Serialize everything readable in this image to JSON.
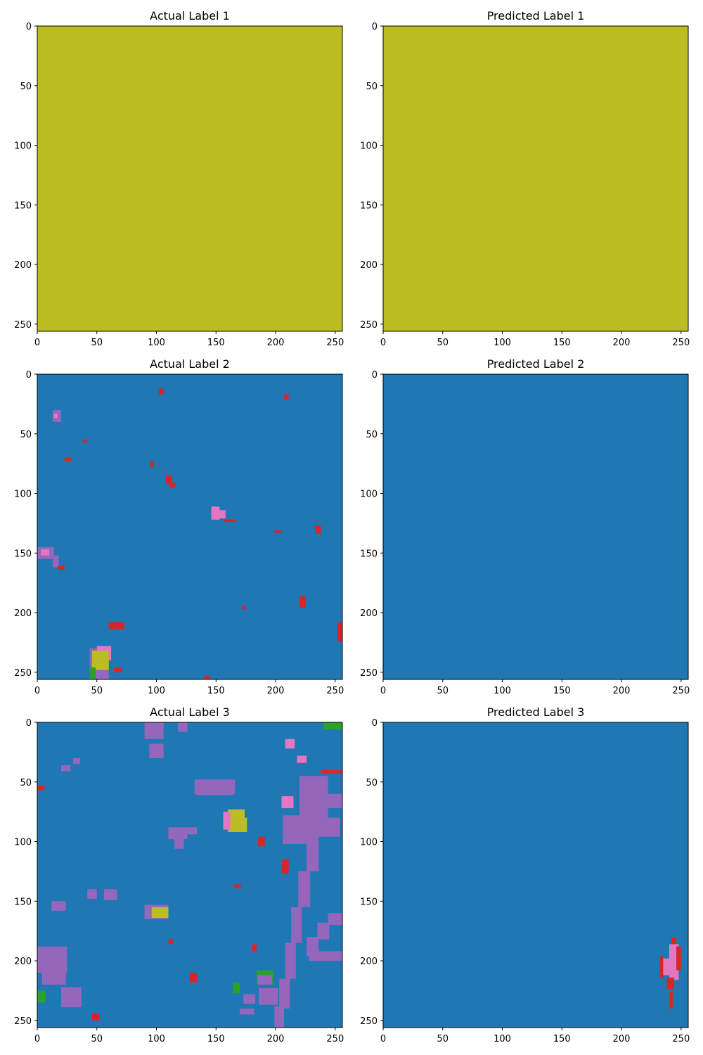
{
  "colors": {
    "background_blue": "#1f77b4",
    "olive": "#bcbd22",
    "purple": "#9467bd",
    "pink": "#e377c2",
    "red": "#d62728",
    "green": "#2ca02c",
    "frame": "#000000"
  },
  "chart_data": [
    {
      "type": "heatmap",
      "title": "Actual Label 1",
      "xlim": [
        0,
        256
      ],
      "ylim": [
        256,
        0
      ],
      "xticks": [
        0,
        50,
        100,
        150,
        200,
        250
      ],
      "yticks": [
        0,
        50,
        100,
        150,
        200,
        250
      ],
      "fill": "olive",
      "patches": []
    },
    {
      "type": "heatmap",
      "title": "Predicted Label 1",
      "xlim": [
        0,
        256
      ],
      "ylim": [
        256,
        0
      ],
      "xticks": [
        0,
        50,
        100,
        150,
        200,
        250
      ],
      "yticks": [
        0,
        50,
        100,
        150,
        200,
        250
      ],
      "fill": "olive",
      "patches": []
    },
    {
      "type": "heatmap",
      "title": "Actual Label 2",
      "xlim": [
        0,
        256
      ],
      "ylim": [
        256,
        0
      ],
      "xticks": [
        0,
        50,
        100,
        150,
        200,
        250
      ],
      "yticks": [
        0,
        50,
        100,
        150,
        200,
        250
      ],
      "fill": "background_blue",
      "patches": [
        {
          "x": 13,
          "y": 30,
          "w": 7,
          "h": 10,
          "c": "purple"
        },
        {
          "x": 14,
          "y": 33,
          "w": 3,
          "h": 4,
          "c": "pink"
        },
        {
          "x": 102,
          "y": 12,
          "w": 4,
          "h": 5,
          "c": "red"
        },
        {
          "x": 207,
          "y": 17,
          "w": 4,
          "h": 4,
          "c": "red"
        },
        {
          "x": 0,
          "y": 145,
          "w": 14,
          "h": 10,
          "c": "purple"
        },
        {
          "x": 3,
          "y": 147,
          "w": 7,
          "h": 5,
          "c": "pink"
        },
        {
          "x": 13,
          "y": 152,
          "w": 5,
          "h": 10,
          "c": "purple"
        },
        {
          "x": 17,
          "y": 161,
          "w": 6,
          "h": 3,
          "c": "red"
        },
        {
          "x": 146,
          "y": 111,
          "w": 7,
          "h": 11,
          "c": "pink"
        },
        {
          "x": 151,
          "y": 114,
          "w": 7,
          "h": 7,
          "c": "pink"
        },
        {
          "x": 157,
          "y": 122,
          "w": 9,
          "h": 2,
          "c": "red"
        },
        {
          "x": 233,
          "y": 127,
          "w": 5,
          "h": 7,
          "c": "red"
        },
        {
          "x": 108,
          "y": 85,
          "w": 5,
          "h": 7,
          "c": "red"
        },
        {
          "x": 111,
          "y": 91,
          "w": 5,
          "h": 4,
          "c": "red"
        },
        {
          "x": 44,
          "y": 230,
          "w": 16,
          "h": 26,
          "c": "purple"
        },
        {
          "x": 50,
          "y": 228,
          "w": 12,
          "h": 12,
          "c": "pink"
        },
        {
          "x": 46,
          "y": 232,
          "w": 14,
          "h": 16,
          "c": "olive"
        },
        {
          "x": 44,
          "y": 246,
          "w": 5,
          "h": 10,
          "c": "green"
        },
        {
          "x": 60,
          "y": 208,
          "w": 13,
          "h": 6,
          "c": "red"
        },
        {
          "x": 64,
          "y": 246,
          "w": 7,
          "h": 4,
          "c": "red"
        },
        {
          "x": 220,
          "y": 186,
          "w": 5,
          "h": 10,
          "c": "red"
        },
        {
          "x": 252,
          "y": 208,
          "w": 4,
          "h": 16,
          "c": "red"
        },
        {
          "x": 38,
          "y": 55,
          "w": 4,
          "h": 2,
          "c": "red"
        },
        {
          "x": 23,
          "y": 70,
          "w": 6,
          "h": 3,
          "c": "red"
        },
        {
          "x": 95,
          "y": 73,
          "w": 3,
          "h": 5,
          "c": "red"
        },
        {
          "x": 199,
          "y": 131,
          "w": 6,
          "h": 2,
          "c": "red"
        },
        {
          "x": 172,
          "y": 194,
          "w": 3,
          "h": 3,
          "c": "red"
        },
        {
          "x": 140,
          "y": 253,
          "w": 5,
          "h": 3,
          "c": "red"
        }
      ]
    },
    {
      "type": "heatmap",
      "title": "Predicted Label 2",
      "xlim": [
        0,
        256
      ],
      "ylim": [
        256,
        0
      ],
      "xticks": [
        0,
        50,
        100,
        150,
        200,
        250
      ],
      "yticks": [
        0,
        50,
        100,
        150,
        200,
        250
      ],
      "fill": "background_blue",
      "patches": []
    },
    {
      "type": "heatmap",
      "title": "Actual Label 3",
      "xlim": [
        0,
        256
      ],
      "ylim": [
        256,
        0
      ],
      "xticks": [
        0,
        50,
        100,
        150,
        200,
        250
      ],
      "yticks": [
        0,
        50,
        100,
        150,
        200,
        250
      ],
      "fill": "background_blue",
      "patches": [
        {
          "x": 132,
          "y": 48,
          "w": 34,
          "h": 12,
          "c": "purple"
        },
        {
          "x": 133,
          "y": 55,
          "w": 32,
          "h": 6,
          "c": "purple"
        },
        {
          "x": 220,
          "y": 45,
          "w": 24,
          "h": 48,
          "c": "purple"
        },
        {
          "x": 206,
          "y": 78,
          "w": 30,
          "h": 24,
          "c": "purple"
        },
        {
          "x": 236,
          "y": 80,
          "w": 18,
          "h": 16,
          "c": "purple"
        },
        {
          "x": 236,
          "y": 60,
          "w": 20,
          "h": 12,
          "c": "purple"
        },
        {
          "x": 205,
          "y": 62,
          "w": 10,
          "h": 10,
          "c": "pink"
        },
        {
          "x": 238,
          "y": 40,
          "w": 18,
          "h": 3,
          "c": "red"
        },
        {
          "x": 226,
          "y": 100,
          "w": 10,
          "h": 25,
          "c": "purple"
        },
        {
          "x": 219,
          "y": 125,
          "w": 10,
          "h": 30,
          "c": "purple"
        },
        {
          "x": 213,
          "y": 155,
          "w": 9,
          "h": 30,
          "c": "purple"
        },
        {
          "x": 208,
          "y": 185,
          "w": 9,
          "h": 30,
          "c": "purple"
        },
        {
          "x": 203,
          "y": 215,
          "w": 9,
          "h": 25,
          "c": "purple"
        },
        {
          "x": 199,
          "y": 238,
          "w": 8,
          "h": 18,
          "c": "purple"
        },
        {
          "x": 226,
          "y": 180,
          "w": 10,
          "h": 16,
          "c": "purple"
        },
        {
          "x": 235,
          "y": 168,
          "w": 10,
          "h": 14,
          "c": "purple"
        },
        {
          "x": 244,
          "y": 160,
          "w": 12,
          "h": 10,
          "c": "purple"
        },
        {
          "x": 228,
          "y": 192,
          "w": 28,
          "h": 8,
          "c": "purple"
        },
        {
          "x": 160,
          "y": 73,
          "w": 14,
          "h": 10,
          "c": "olive"
        },
        {
          "x": 160,
          "y": 80,
          "w": 16,
          "h": 12,
          "c": "olive"
        },
        {
          "x": 156,
          "y": 75,
          "w": 6,
          "h": 15,
          "c": "pink"
        },
        {
          "x": 110,
          "y": 88,
          "w": 16,
          "h": 10,
          "c": "purple"
        },
        {
          "x": 115,
          "y": 96,
          "w": 8,
          "h": 10,
          "c": "purple"
        },
        {
          "x": 126,
          "y": 88,
          "w": 8,
          "h": 6,
          "c": "purple"
        },
        {
          "x": 90,
          "y": 153,
          "w": 20,
          "h": 12,
          "c": "purple"
        },
        {
          "x": 96,
          "y": 155,
          "w": 14,
          "h": 9,
          "c": "olive"
        },
        {
          "x": 0,
          "y": 188,
          "w": 25,
          "h": 22,
          "c": "purple"
        },
        {
          "x": 4,
          "y": 200,
          "w": 20,
          "h": 20,
          "c": "purple"
        },
        {
          "x": 20,
          "y": 222,
          "w": 17,
          "h": 17,
          "c": "purple"
        },
        {
          "x": 184,
          "y": 208,
          "w": 14,
          "h": 12,
          "c": "green"
        },
        {
          "x": 185,
          "y": 212,
          "w": 12,
          "h": 8,
          "c": "purple"
        },
        {
          "x": 186,
          "y": 223,
          "w": 16,
          "h": 14,
          "c": "purple"
        },
        {
          "x": 173,
          "y": 228,
          "w": 10,
          "h": 8,
          "c": "purple"
        },
        {
          "x": 170,
          "y": 240,
          "w": 12,
          "h": 5,
          "c": "purple"
        },
        {
          "x": 164,
          "y": 218,
          "w": 6,
          "h": 9,
          "c": "green"
        },
        {
          "x": 0,
          "y": 225,
          "w": 7,
          "h": 10,
          "c": "green"
        },
        {
          "x": 56,
          "y": 140,
          "w": 11,
          "h": 9,
          "c": "purple"
        },
        {
          "x": 12,
          "y": 150,
          "w": 12,
          "h": 8,
          "c": "purple"
        },
        {
          "x": 90,
          "y": 0,
          "w": 16,
          "h": 14,
          "c": "purple"
        },
        {
          "x": 94,
          "y": 18,
          "w": 12,
          "h": 12,
          "c": "purple"
        },
        {
          "x": 118,
          "y": 0,
          "w": 8,
          "h": 8,
          "c": "purple"
        },
        {
          "x": 208,
          "y": 14,
          "w": 8,
          "h": 8,
          "c": "pink"
        },
        {
          "x": 240,
          "y": 0,
          "w": 16,
          "h": 6,
          "c": "green"
        },
        {
          "x": 218,
          "y": 28,
          "w": 8,
          "h": 6,
          "c": "pink"
        },
        {
          "x": 20,
          "y": 36,
          "w": 8,
          "h": 5,
          "c": "purple"
        },
        {
          "x": 30,
          "y": 30,
          "w": 6,
          "h": 5,
          "c": "purple"
        },
        {
          "x": 42,
          "y": 140,
          "w": 8,
          "h": 8,
          "c": "purple"
        },
        {
          "x": 110,
          "y": 182,
          "w": 4,
          "h": 4,
          "c": "red"
        },
        {
          "x": 180,
          "y": 186,
          "w": 4,
          "h": 6,
          "c": "red"
        },
        {
          "x": 128,
          "y": 210,
          "w": 6,
          "h": 8,
          "c": "red"
        },
        {
          "x": 46,
          "y": 244,
          "w": 6,
          "h": 6,
          "c": "red"
        },
        {
          "x": 165,
          "y": 136,
          "w": 6,
          "h": 3,
          "c": "red"
        },
        {
          "x": 0,
          "y": 53,
          "w": 6,
          "h": 4,
          "c": "red"
        },
        {
          "x": 205,
          "y": 115,
          "w": 6,
          "h": 12,
          "c": "red"
        },
        {
          "x": 185,
          "y": 96,
          "w": 6,
          "h": 8,
          "c": "red"
        }
      ]
    },
    {
      "type": "heatmap",
      "title": "Predicted Label 3",
      "xlim": [
        0,
        256
      ],
      "ylim": [
        256,
        0
      ],
      "xticks": [
        0,
        50,
        100,
        150,
        200,
        250
      ],
      "yticks": [
        0,
        50,
        100,
        150,
        200,
        250
      ],
      "fill": "background_blue",
      "patches": [
        {
          "x": 240,
          "y": 186,
          "w": 8,
          "h": 30,
          "c": "pink"
        },
        {
          "x": 234,
          "y": 198,
          "w": 8,
          "h": 14,
          "c": "pink"
        },
        {
          "x": 246,
          "y": 188,
          "w": 4,
          "h": 20,
          "c": "red"
        },
        {
          "x": 232,
          "y": 196,
          "w": 3,
          "h": 18,
          "c": "red"
        },
        {
          "x": 238,
          "y": 214,
          "w": 6,
          "h": 10,
          "c": "red"
        },
        {
          "x": 242,
          "y": 180,
          "w": 4,
          "h": 6,
          "c": "red"
        },
        {
          "x": 240,
          "y": 226,
          "w": 3,
          "h": 14,
          "c": "red"
        }
      ]
    }
  ]
}
